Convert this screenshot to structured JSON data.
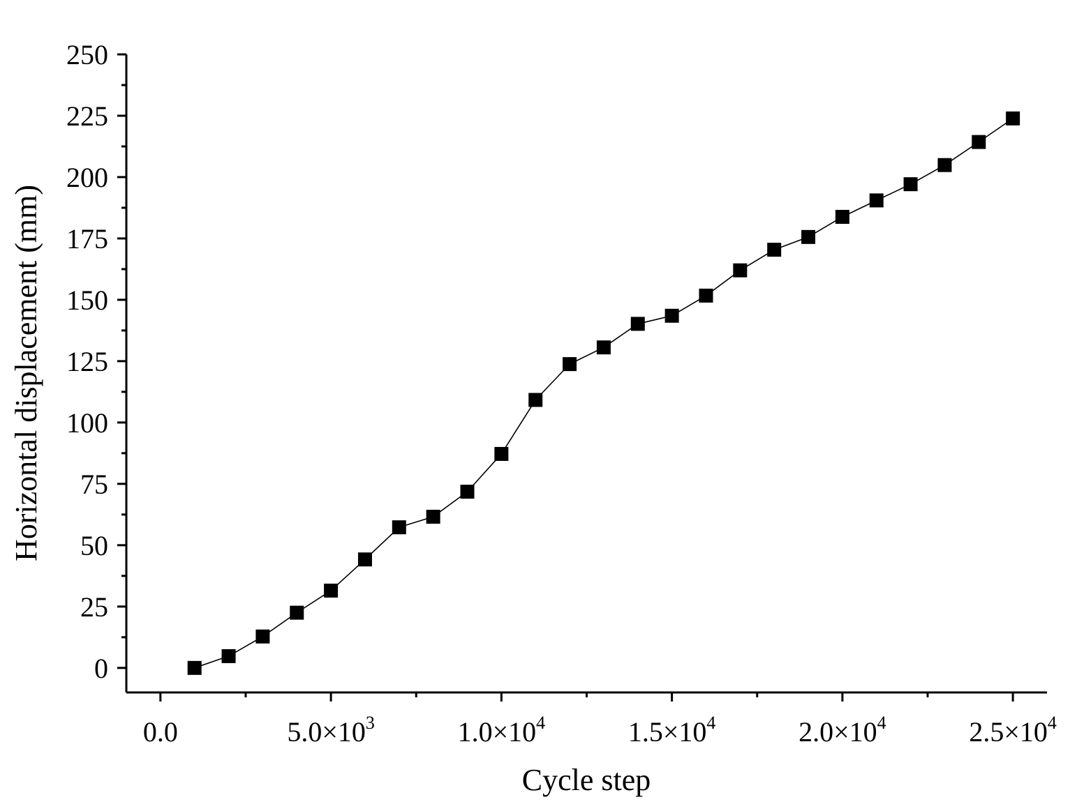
{
  "chart_data": {
    "type": "line",
    "xlabel": "Cycle step",
    "ylabel": "Horizontal displacement (mm)",
    "xlim": [
      -1000,
      26000
    ],
    "ylim": [
      -10,
      250
    ],
    "grid": false,
    "legend": "none",
    "marker": "square",
    "colors": {
      "line": "#000000",
      "marker": "#000000",
      "axis": "#000000"
    },
    "x_ticks": [
      {
        "value": 0,
        "mantissa": "0.0",
        "exponent": ""
      },
      {
        "value": 5000,
        "mantissa": "5.0×10",
        "exponent": "3"
      },
      {
        "value": 10000,
        "mantissa": "1.0×10",
        "exponent": "4"
      },
      {
        "value": 15000,
        "mantissa": "1.5×10",
        "exponent": "4"
      },
      {
        "value": 20000,
        "mantissa": "2.0×10",
        "exponent": "4"
      },
      {
        "value": 25000,
        "mantissa": "2.5×10",
        "exponent": "4"
      }
    ],
    "x_minor_ticks": [
      2500,
      7500,
      12500,
      17500,
      22500
    ],
    "y_ticks": [
      {
        "value": 0,
        "label": "0"
      },
      {
        "value": 25,
        "label": "25"
      },
      {
        "value": 50,
        "label": "50"
      },
      {
        "value": 75,
        "label": "75"
      },
      {
        "value": 100,
        "label": "100"
      },
      {
        "value": 125,
        "label": "125"
      },
      {
        "value": 150,
        "label": "150"
      },
      {
        "value": 175,
        "label": "175"
      },
      {
        "value": 200,
        "label": "200"
      },
      {
        "value": 225,
        "label": "225"
      },
      {
        "value": 250,
        "label": "250"
      }
    ],
    "y_minor_ticks": [
      12.5,
      37.5,
      62.5,
      87.5,
      112.5,
      137.5,
      162.5,
      187.5,
      212.5,
      237.5
    ],
    "series": [
      {
        "x": [
          1000,
          2000,
          3000,
          4000,
          5000,
          6000,
          7000,
          8000,
          9000,
          10000,
          11000,
          12000,
          13000,
          14000,
          15000,
          16000,
          17000,
          18000,
          19000,
          20000,
          21000,
          22000,
          23000,
          24000,
          25000
        ],
        "y": [
          0,
          4.8,
          12.8,
          22.5,
          31.5,
          44.2,
          57.3,
          61.6,
          71.8,
          87.2,
          109.2,
          123.8,
          130.6,
          140.2,
          143.5,
          151.7,
          162,
          170.4,
          175.6,
          183.8,
          190.5,
          197.1,
          204.9,
          214.3,
          223.9
        ]
      }
    ]
  }
}
